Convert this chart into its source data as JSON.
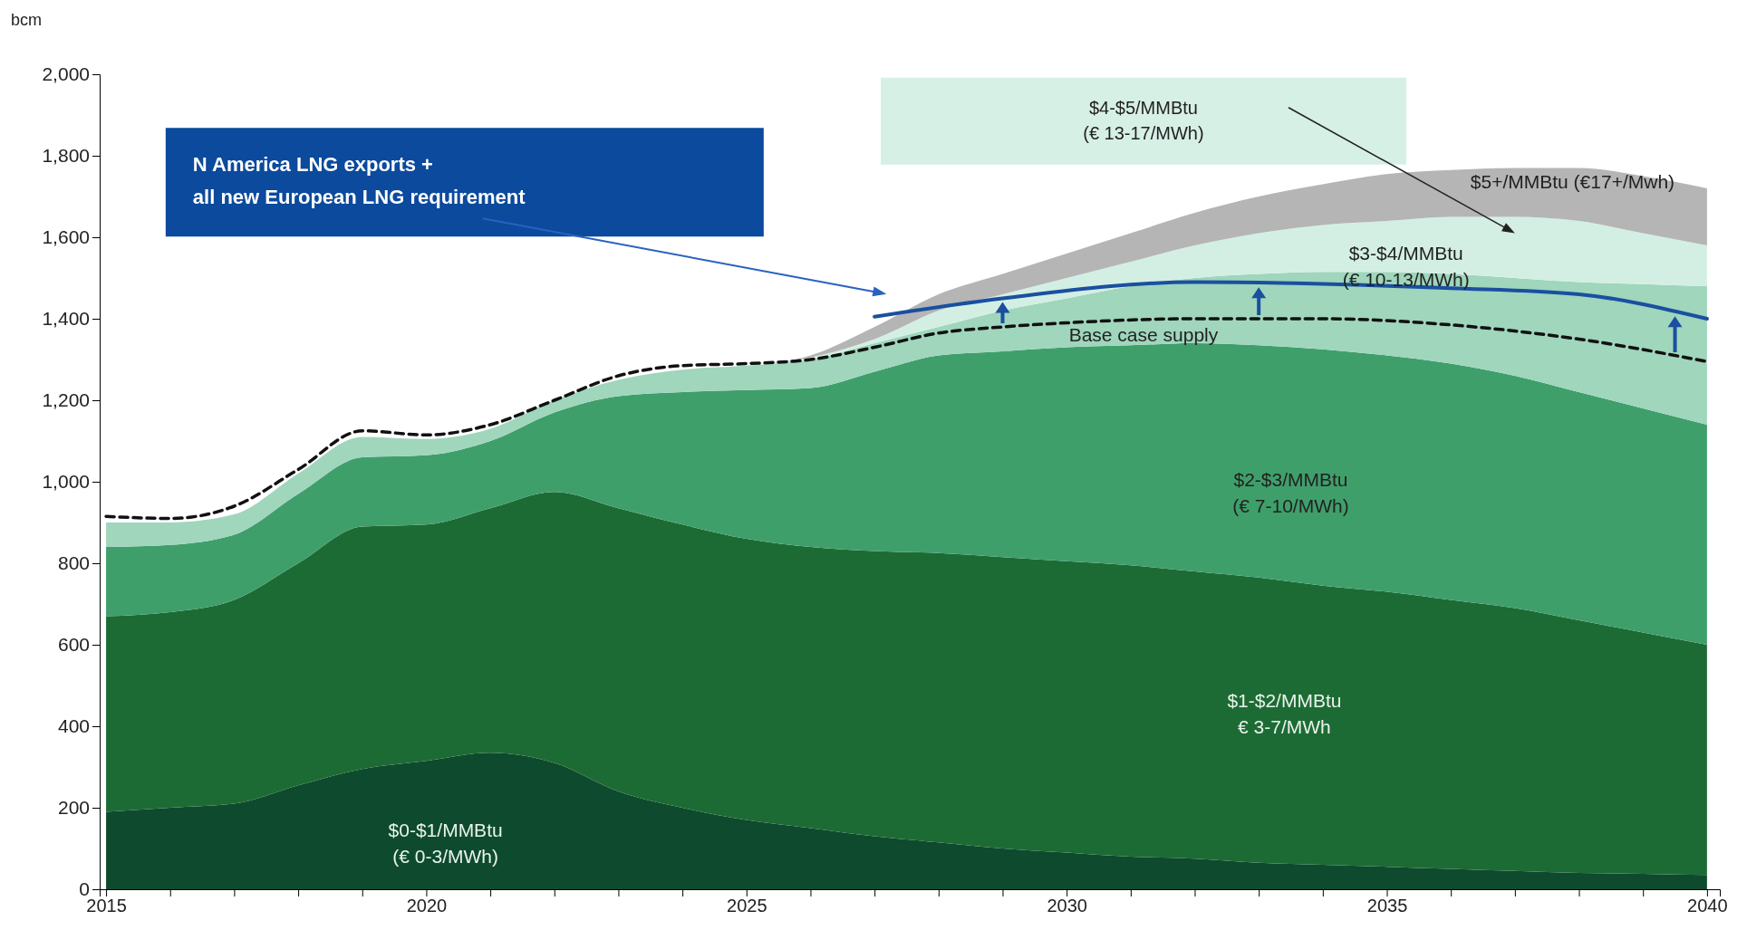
{
  "chart_data": {
    "type": "area",
    "stacked": true,
    "ylabel": "bcm",
    "x": [
      2015,
      2016,
      2017,
      2018,
      2019,
      2020,
      2021,
      2022,
      2023,
      2024,
      2025,
      2026,
      2027,
      2028,
      2029,
      2030,
      2031,
      2032,
      2033,
      2034,
      2035,
      2036,
      2037,
      2038,
      2039,
      2040
    ],
    "xlim": [
      2014.9,
      2040.2
    ],
    "xticks": [
      2015,
      {
        "value": 2016,
        "label": null
      },
      {
        "value": 2017,
        "label": null
      },
      {
        "value": 2018,
        "label": null
      },
      {
        "value": 2019,
        "label": null
      },
      2020,
      {
        "value": 2021,
        "label": null
      },
      {
        "value": 2022,
        "label": null
      },
      {
        "value": 2023,
        "label": null
      },
      {
        "value": 2024,
        "label": null
      },
      2025,
      {
        "value": 2026,
        "label": null
      },
      {
        "value": 2027,
        "label": null
      },
      {
        "value": 2028,
        "label": null
      },
      {
        "value": 2029,
        "label": null
      },
      2030,
      {
        "value": 2031,
        "label": null
      },
      {
        "value": 2032,
        "label": null
      },
      {
        "value": 2033,
        "label": null
      },
      {
        "value": 2034,
        "label": null
      },
      2035,
      {
        "value": 2036,
        "label": null
      },
      {
        "value": 2037,
        "label": null
      },
      {
        "value": 2038,
        "label": null
      },
      {
        "value": 2039,
        "label": null
      },
      2040
    ],
    "ylim": [
      0,
      2000
    ],
    "yticks": [
      0,
      200,
      400,
      600,
      800,
      {
        "value": 1000,
        "label": "1,000"
      },
      {
        "value": 1200,
        "label": "1,200"
      },
      {
        "value": 1400,
        "label": "1,400"
      },
      {
        "value": 1600,
        "label": "1,600"
      },
      {
        "value": 1800,
        "label": "1,800"
      },
      {
        "value": 2000,
        "label": "2,000"
      }
    ],
    "grid": false,
    "series": [
      {
        "color": "#0e4a2e",
        "values": [
          190,
          200,
          210,
          255,
          295,
          315,
          335,
          310,
          240,
          200,
          170,
          150,
          130,
          115,
          100,
          90,
          80,
          75,
          65,
          60,
          55,
          50,
          45,
          40,
          38,
          35
        ]
      },
      {
        "color": "#1d6b34",
        "values": [
          480,
          480,
          500,
          545,
          595,
          580,
          600,
          665,
          695,
          695,
          690,
          690,
          700,
          710,
          715,
          715,
          715,
          705,
          700,
          685,
          675,
          660,
          645,
          620,
          592,
          565
        ]
      },
      {
        "color": "#3f9f6b",
        "values": [
          170,
          165,
          160,
          170,
          170,
          170,
          165,
          195,
          275,
          325,
          365,
          390,
          440,
          485,
          505,
          525,
          540,
          560,
          570,
          580,
          580,
          580,
          570,
          560,
          550,
          540
        ]
      },
      {
        "color": "#9fd6bc",
        "values": [
          60,
          55,
          50,
          50,
          50,
          40,
          30,
          30,
          40,
          55,
          60,
          70,
          70,
          70,
          100,
          120,
          145,
          160,
          175,
          190,
          205,
          220,
          240,
          270,
          305,
          340
        ]
      },
      {
        "color": "#d3efe3",
        "values": [
          0,
          0,
          0,
          0,
          0,
          0,
          0,
          0,
          0,
          0,
          0,
          5,
          10,
          40,
          40,
          50,
          60,
          80,
          100,
          115,
          125,
          140,
          150,
          150,
          125,
          100
        ]
      },
      {
        "color": "#b5b5b5",
        "values": [
          0,
          0,
          0,
          0,
          0,
          0,
          0,
          0,
          0,
          0,
          0,
          5,
          30,
          40,
          50,
          60,
          70,
          80,
          90,
          100,
          115,
          115,
          120,
          130,
          140,
          140
        ]
      },
      {
        "type": "line",
        "line_style": "dashed",
        "color": "#111111",
        "x": [
          2015,
          2016,
          2017,
          2018,
          2019,
          2020,
          2021,
          2022,
          2023,
          2024,
          2025,
          2026,
          2027,
          2028,
          2029,
          2030,
          2032,
          2034,
          2036,
          2038,
          2040
        ],
        "values": [
          915,
          910,
          940,
          1030,
          1125,
          1115,
          1140,
          1200,
          1260,
          1285,
          1290,
          1300,
          1330,
          1365,
          1380,
          1390,
          1400,
          1400,
          1385,
          1350,
          1295
        ]
      },
      {
        "type": "line",
        "line_style": "solid",
        "color": "#1a4fa0",
        "x": [
          2027,
          2029,
          2032,
          2036,
          2038,
          2040
        ],
        "values": [
          1405,
          1450,
          1490,
          1475,
          1460,
          1400
        ]
      }
    ],
    "annotations": [
      "$0-$1/MMBtu\n(€ 0-3/MWh)",
      "$1-$2/MMBtu\n€ 3-7/MWh",
      "$2-$3/MMBtu\n(€ 7-10/MWh)",
      "$3-$4/MMBtu\n(€ 10-13/MWh)",
      "$5+/MMBtu (€17+/Mwh)",
      "Base case supply",
      "N America LNG exports +\nall new European LNG requirement",
      "$4-$5/MMBtu\n(€ 13-17/MWh)"
    ]
  }
}
